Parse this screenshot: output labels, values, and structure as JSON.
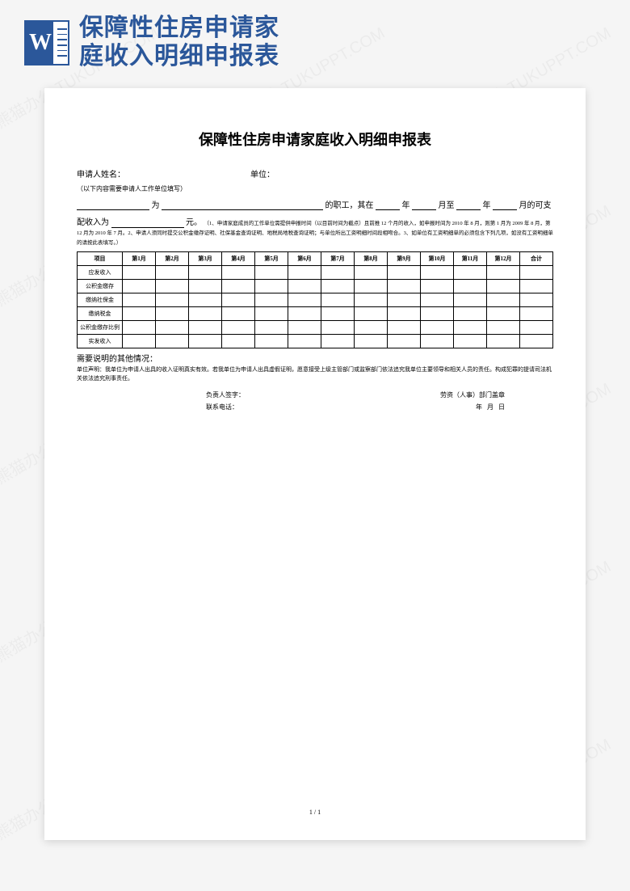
{
  "header": {
    "title_line1": "保障性住房申请家",
    "title_line2": "庭收入明细申报表",
    "icon_letter": "W"
  },
  "doc": {
    "title": "保障性住房申请家庭收入明细申报表",
    "applicant_label": "申请人姓名：",
    "unit_label": "单位：",
    "note": "（以下内容需要申请人工作单位填写）",
    "line2_a": "为",
    "line2_b": "的职工，其在",
    "line2_c": "年",
    "line2_d": "月至",
    "line2_e": "年",
    "line2_f": "月的可支",
    "line3_a": "配收入为",
    "line3_b": "元。",
    "fine_print": "（1、申请家庭成员的工作单位需提供申报时间（以目前时间为截点）且前推 12 个月的收入，如申报时间为 2010 年 8 月，则第 1 月为 2009 年 8 月，第 12 月为 2010 年 7 月。2、申请人须同时提交公积金缴存证明、社保基金查询证明、地税局地税查询证明；与单位所出工资明细时间段相吻合。3、如单位有工资明细单的必须包含下列几项，如没有工资明细单的请按此表填写。）",
    "table": {
      "headers": [
        "项目",
        "第1月",
        "第2月",
        "第3月",
        "第4月",
        "第5月",
        "第6月",
        "第7月",
        "第8月",
        "第9月",
        "第10月",
        "第11月",
        "第12月",
        "合计"
      ],
      "rows": [
        "应发收入",
        "公积金缴存",
        "缴纳社保金",
        "缴纳税金",
        "公积金缴存比例",
        "实发收入"
      ]
    },
    "other_label": "需要说明的其他情况：",
    "declaration": "单位声明：我单位为申请人出具的收入证明真实有效。若我单位为申请人出具虚假证明，愿意接受上级主管部门或监察部门依法追究我单位主要领导和相关人员的责任。构成犯罪的提请司法机关依法追究刑事责任。",
    "sig": {
      "leader": "负责人签字：",
      "phone": "联系电话：",
      "dept": "劳资（人事）部门盖章",
      "date_y": "年",
      "date_m": "月",
      "date_d": "日"
    },
    "page_num": "1 / 1"
  },
  "watermark_text": "熊猫办公 TUKUPPT.COM"
}
